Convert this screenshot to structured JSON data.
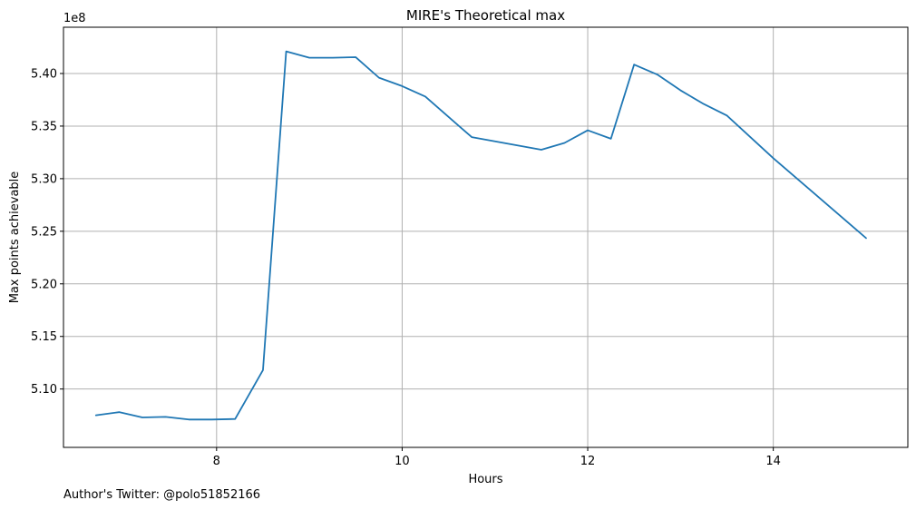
{
  "chart_data": {
    "type": "line",
    "title": "MIRE's Theoretical max",
    "xlabel": "Hours",
    "ylabel": "Max points achievable",
    "y_offset_text": "1e8",
    "xlim": [
      6.35,
      15.45
    ],
    "ylim": [
      5.0445,
      5.444
    ],
    "x_ticks": [
      8,
      10,
      12,
      14
    ],
    "x_tick_labels": [
      "8",
      "10",
      "12",
      "14"
    ],
    "y_ticks": [
      5.1,
      5.15,
      5.2,
      5.25,
      5.3,
      5.35,
      5.4
    ],
    "y_tick_labels": [
      "5.10",
      "5.15",
      "5.20",
      "5.25",
      "5.30",
      "5.35",
      "5.40"
    ],
    "grid": true,
    "line_color": "#1f77b4",
    "series": [
      {
        "x": [
          6.7,
          6.95,
          7.2,
          7.45,
          7.7,
          7.95,
          8.2,
          8.5,
          8.75,
          9.0,
          9.25,
          9.5,
          9.75,
          10.0,
          10.25,
          10.75,
          11.5,
          11.75,
          12.0,
          12.25,
          12.5,
          12.75,
          13.0,
          13.25,
          13.5,
          14.0,
          15.0
        ],
        "y": [
          5.075,
          5.078,
          5.073,
          5.0735,
          5.071,
          5.071,
          5.0715,
          5.118,
          5.421,
          5.415,
          5.415,
          5.4155,
          5.396,
          5.388,
          5.378,
          5.3395,
          5.3275,
          5.334,
          5.346,
          5.338,
          5.4085,
          5.399,
          5.384,
          5.371,
          5.36,
          5.3195,
          5.2435
        ]
      }
    ]
  },
  "footer": {
    "author_note": "Author's Twitter: @polo51852166"
  }
}
